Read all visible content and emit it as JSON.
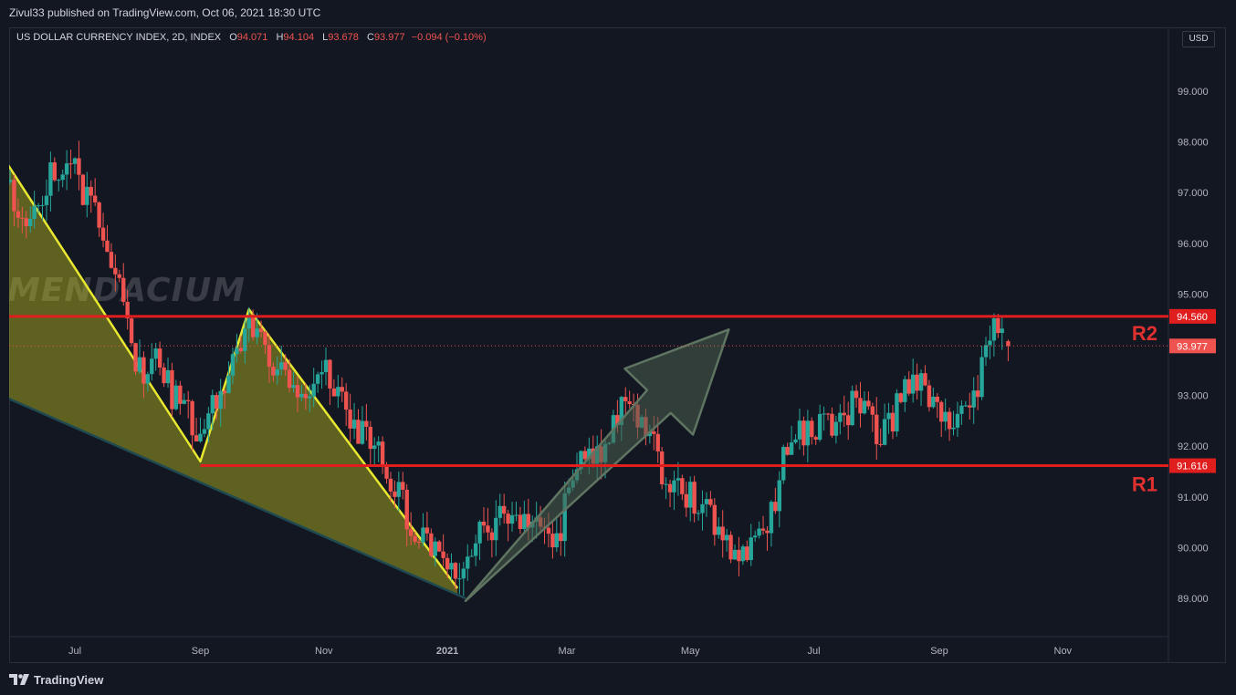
{
  "header": {
    "publish_line": "Zivul33 published on TradingView.com, Oct 06, 2021 18:30 UTC"
  },
  "legend": {
    "symbol": "US DOLLAR CURRENCY INDEX, 2D, INDEX",
    "open_label": "O",
    "open": "94.071",
    "high_label": "H",
    "high": "94.104",
    "low_label": "L",
    "low": "93.678",
    "close_label": "C",
    "close": "93.977",
    "change": "−0.094 (−0.10%)"
  },
  "currency": "USD",
  "watermark": "MENDACIUM",
  "footer": {
    "brand": "TradingView"
  },
  "colors": {
    "up": "#26a69a",
    "down": "#ef5350",
    "level": "#e01e1e",
    "wedge": "#c8c81e",
    "arrow": "#4a5e4f",
    "bg": "#131722"
  },
  "chart_data": {
    "type": "candlestick",
    "title": "US DOLLAR CURRENCY INDEX, 2D, INDEX",
    "ylim": [
      88.2,
      100.3
    ],
    "y_ticks": [
      "89.000",
      "90.000",
      "91.000",
      "92.000",
      "93.000",
      "94.000",
      "95.000",
      "96.000",
      "97.000",
      "98.000",
      "99.000"
    ],
    "x_ticks": [
      {
        "label": "Jul",
        "date": "2020-07-01"
      },
      {
        "label": "Sep",
        "date": "2020-09-01"
      },
      {
        "label": "Nov",
        "date": "2020-11-01"
      },
      {
        "label": "2021",
        "date": "2021-01-01",
        "bold": true
      },
      {
        "label": "Mar",
        "date": "2021-03-01"
      },
      {
        "label": "May",
        "date": "2021-05-01"
      },
      {
        "label": "Jul",
        "date": "2021-07-01"
      },
      {
        "label": "Sep",
        "date": "2021-09-01"
      },
      {
        "label": "Nov",
        "date": "2021-11-01"
      }
    ],
    "close_anchors": [
      [
        "2020-05-20",
        98.2
      ],
      [
        "2020-05-28",
        97.4
      ],
      [
        "2020-06-08",
        96.1
      ],
      [
        "2020-06-18",
        97.3
      ],
      [
        "2020-06-30",
        97.4
      ],
      [
        "2020-07-10",
        96.7
      ],
      [
        "2020-07-22",
        95.2
      ],
      [
        "2020-07-31",
        93.4
      ],
      [
        "2020-08-10",
        93.6
      ],
      [
        "2020-08-20",
        92.9
      ],
      [
        "2020-09-01",
        92.2
      ],
      [
        "2020-09-10",
        93.1
      ],
      [
        "2020-09-25",
        94.5
      ],
      [
        "2020-10-05",
        93.7
      ],
      [
        "2020-10-20",
        93.2
      ],
      [
        "2020-11-04",
        93.4
      ],
      [
        "2020-11-15",
        92.5
      ],
      [
        "2020-11-30",
        91.7
      ],
      [
        "2020-12-10",
        90.8
      ],
      [
        "2020-12-22",
        90.1
      ],
      [
        "2021-01-06",
        89.4
      ],
      [
        "2021-01-15",
        90.3
      ],
      [
        "2021-01-28",
        90.5
      ],
      [
        "2021-02-10",
        90.5
      ],
      [
        "2021-02-25",
        90.3
      ],
      [
        "2021-03-08",
        91.9
      ],
      [
        "2021-03-20",
        91.8
      ],
      [
        "2021-03-31",
        93.1
      ],
      [
        "2021-04-10",
        92.2
      ],
      [
        "2021-04-22",
        91.1
      ],
      [
        "2021-05-05",
        91.0
      ],
      [
        "2021-05-15",
        90.2
      ],
      [
        "2021-05-25",
        89.9
      ],
      [
        "2021-06-08",
        90.2
      ],
      [
        "2021-06-18",
        92.1
      ],
      [
        "2021-06-30",
        92.4
      ],
      [
        "2021-07-10",
        92.5
      ],
      [
        "2021-07-22",
        92.8
      ],
      [
        "2021-08-03",
        92.1
      ],
      [
        "2021-08-12",
        92.9
      ],
      [
        "2021-08-20",
        93.4
      ],
      [
        "2021-08-30",
        92.7
      ],
      [
        "2021-09-08",
        92.5
      ],
      [
        "2021-09-20",
        93.2
      ],
      [
        "2021-09-28",
        94.4
      ],
      [
        "2021-10-05",
        93.977
      ]
    ],
    "last_bar": {
      "date": "2021-10-05",
      "open": 94.071,
      "high": 94.104,
      "low": 93.678,
      "close": 93.977
    },
    "levels": [
      {
        "name": "R2",
        "value": 94.56,
        "label": "94.560",
        "start_date": "2020-05-20"
      },
      {
        "name": "R1",
        "value": 91.616,
        "label": "91.616",
        "start_date": "2020-09-01"
      }
    ],
    "current_price": {
      "value": 93.977,
      "label": "93.977"
    },
    "wedge_points": [
      [
        "2020-05-20",
        98.1
      ],
      [
        "2020-09-01",
        91.7
      ],
      [
        "2020-09-25",
        94.7
      ],
      [
        "2021-01-06",
        89.2
      ]
    ],
    "wedge_lower": [
      [
        "2020-05-20",
        93.1
      ],
      [
        "2021-01-10",
        89.0
      ]
    ],
    "arrow": {
      "from": [
        "2021-01-10",
        88.95
      ],
      "to": [
        "2021-05-20",
        94.3
      ]
    }
  }
}
